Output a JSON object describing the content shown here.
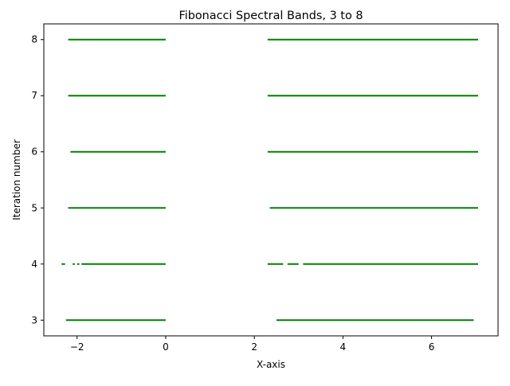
{
  "chart_data": {
    "type": "line",
    "title": "Fibonacci Spectral Bands, 3 to 8",
    "xlabel": "X-axis",
    "ylabel": "Iteration number",
    "xlim": [
      -2.75,
      7.5
    ],
    "ylim": [
      2.72,
      8.28
    ],
    "xticks": [
      -2,
      0,
      2,
      4,
      6
    ],
    "yticks": [
      3,
      4,
      5,
      6,
      7,
      8
    ],
    "grid": false,
    "legend": "none",
    "line_color": "#008000",
    "series": [
      {
        "y": 3,
        "segments": [
          [
            -2.25,
            0.0
          ],
          [
            2.5,
            6.95
          ]
        ]
      },
      {
        "y": 4,
        "segments": [
          [
            -2.35,
            -2.27
          ],
          [
            -2.1,
            -2.05
          ],
          [
            -2.0,
            -1.95
          ],
          [
            -1.9,
            0.0
          ],
          [
            2.3,
            2.65
          ],
          [
            2.75,
            3.0
          ],
          [
            3.1,
            7.05
          ]
        ]
      },
      {
        "y": 5,
        "segments": [
          [
            -2.2,
            0.0
          ],
          [
            2.35,
            7.05
          ]
        ]
      },
      {
        "y": 6,
        "segments": [
          [
            -2.15,
            0.0
          ],
          [
            2.3,
            7.05
          ]
        ]
      },
      {
        "y": 7,
        "segments": [
          [
            -2.2,
            0.0
          ],
          [
            2.3,
            7.05
          ]
        ]
      },
      {
        "y": 8,
        "segments": [
          [
            -2.2,
            0.0
          ],
          [
            2.3,
            7.05
          ]
        ]
      }
    ]
  }
}
